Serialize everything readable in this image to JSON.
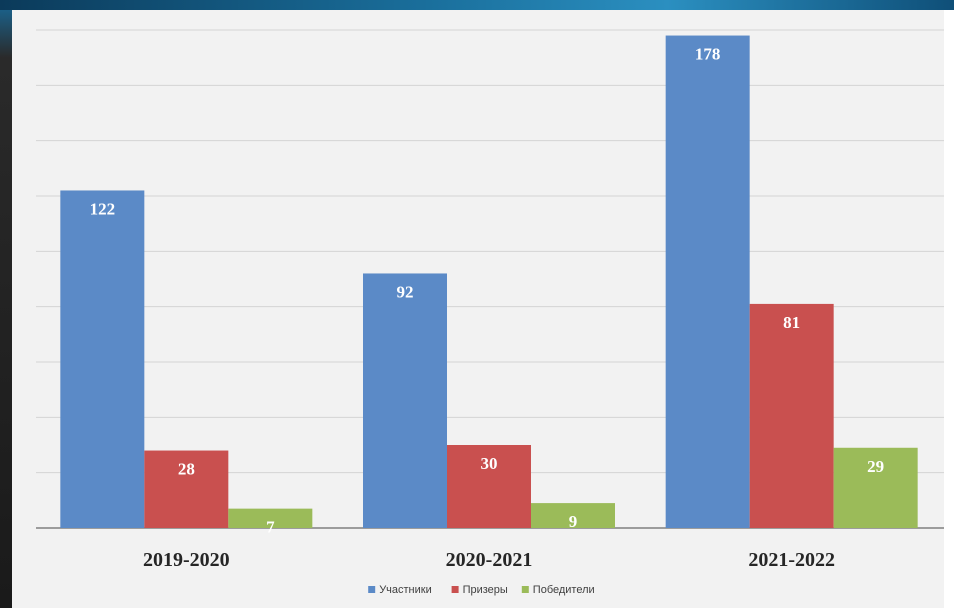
{
  "chart_data": {
    "type": "bar",
    "categories": [
      "2019-2020",
      "2020-2021",
      "2021-2022"
    ],
    "series": [
      {
        "name": "Участники",
        "values": [
          122,
          92,
          178
        ],
        "color": "#5b8ac7"
      },
      {
        "name": "Призеры",
        "values": [
          28,
          30,
          81
        ],
        "color": "#c9504f"
      },
      {
        "name": "Победители",
        "values": [
          7,
          9,
          29
        ],
        "color": "#9bbb59"
      }
    ],
    "ylim": [
      0,
      180
    ],
    "grid": true,
    "legend": "bottom",
    "data_labels": true
  },
  "colors": {
    "gridline": "#d4d4d4",
    "axis": "#7f7f7f",
    "background": "#f2f2f2"
  }
}
